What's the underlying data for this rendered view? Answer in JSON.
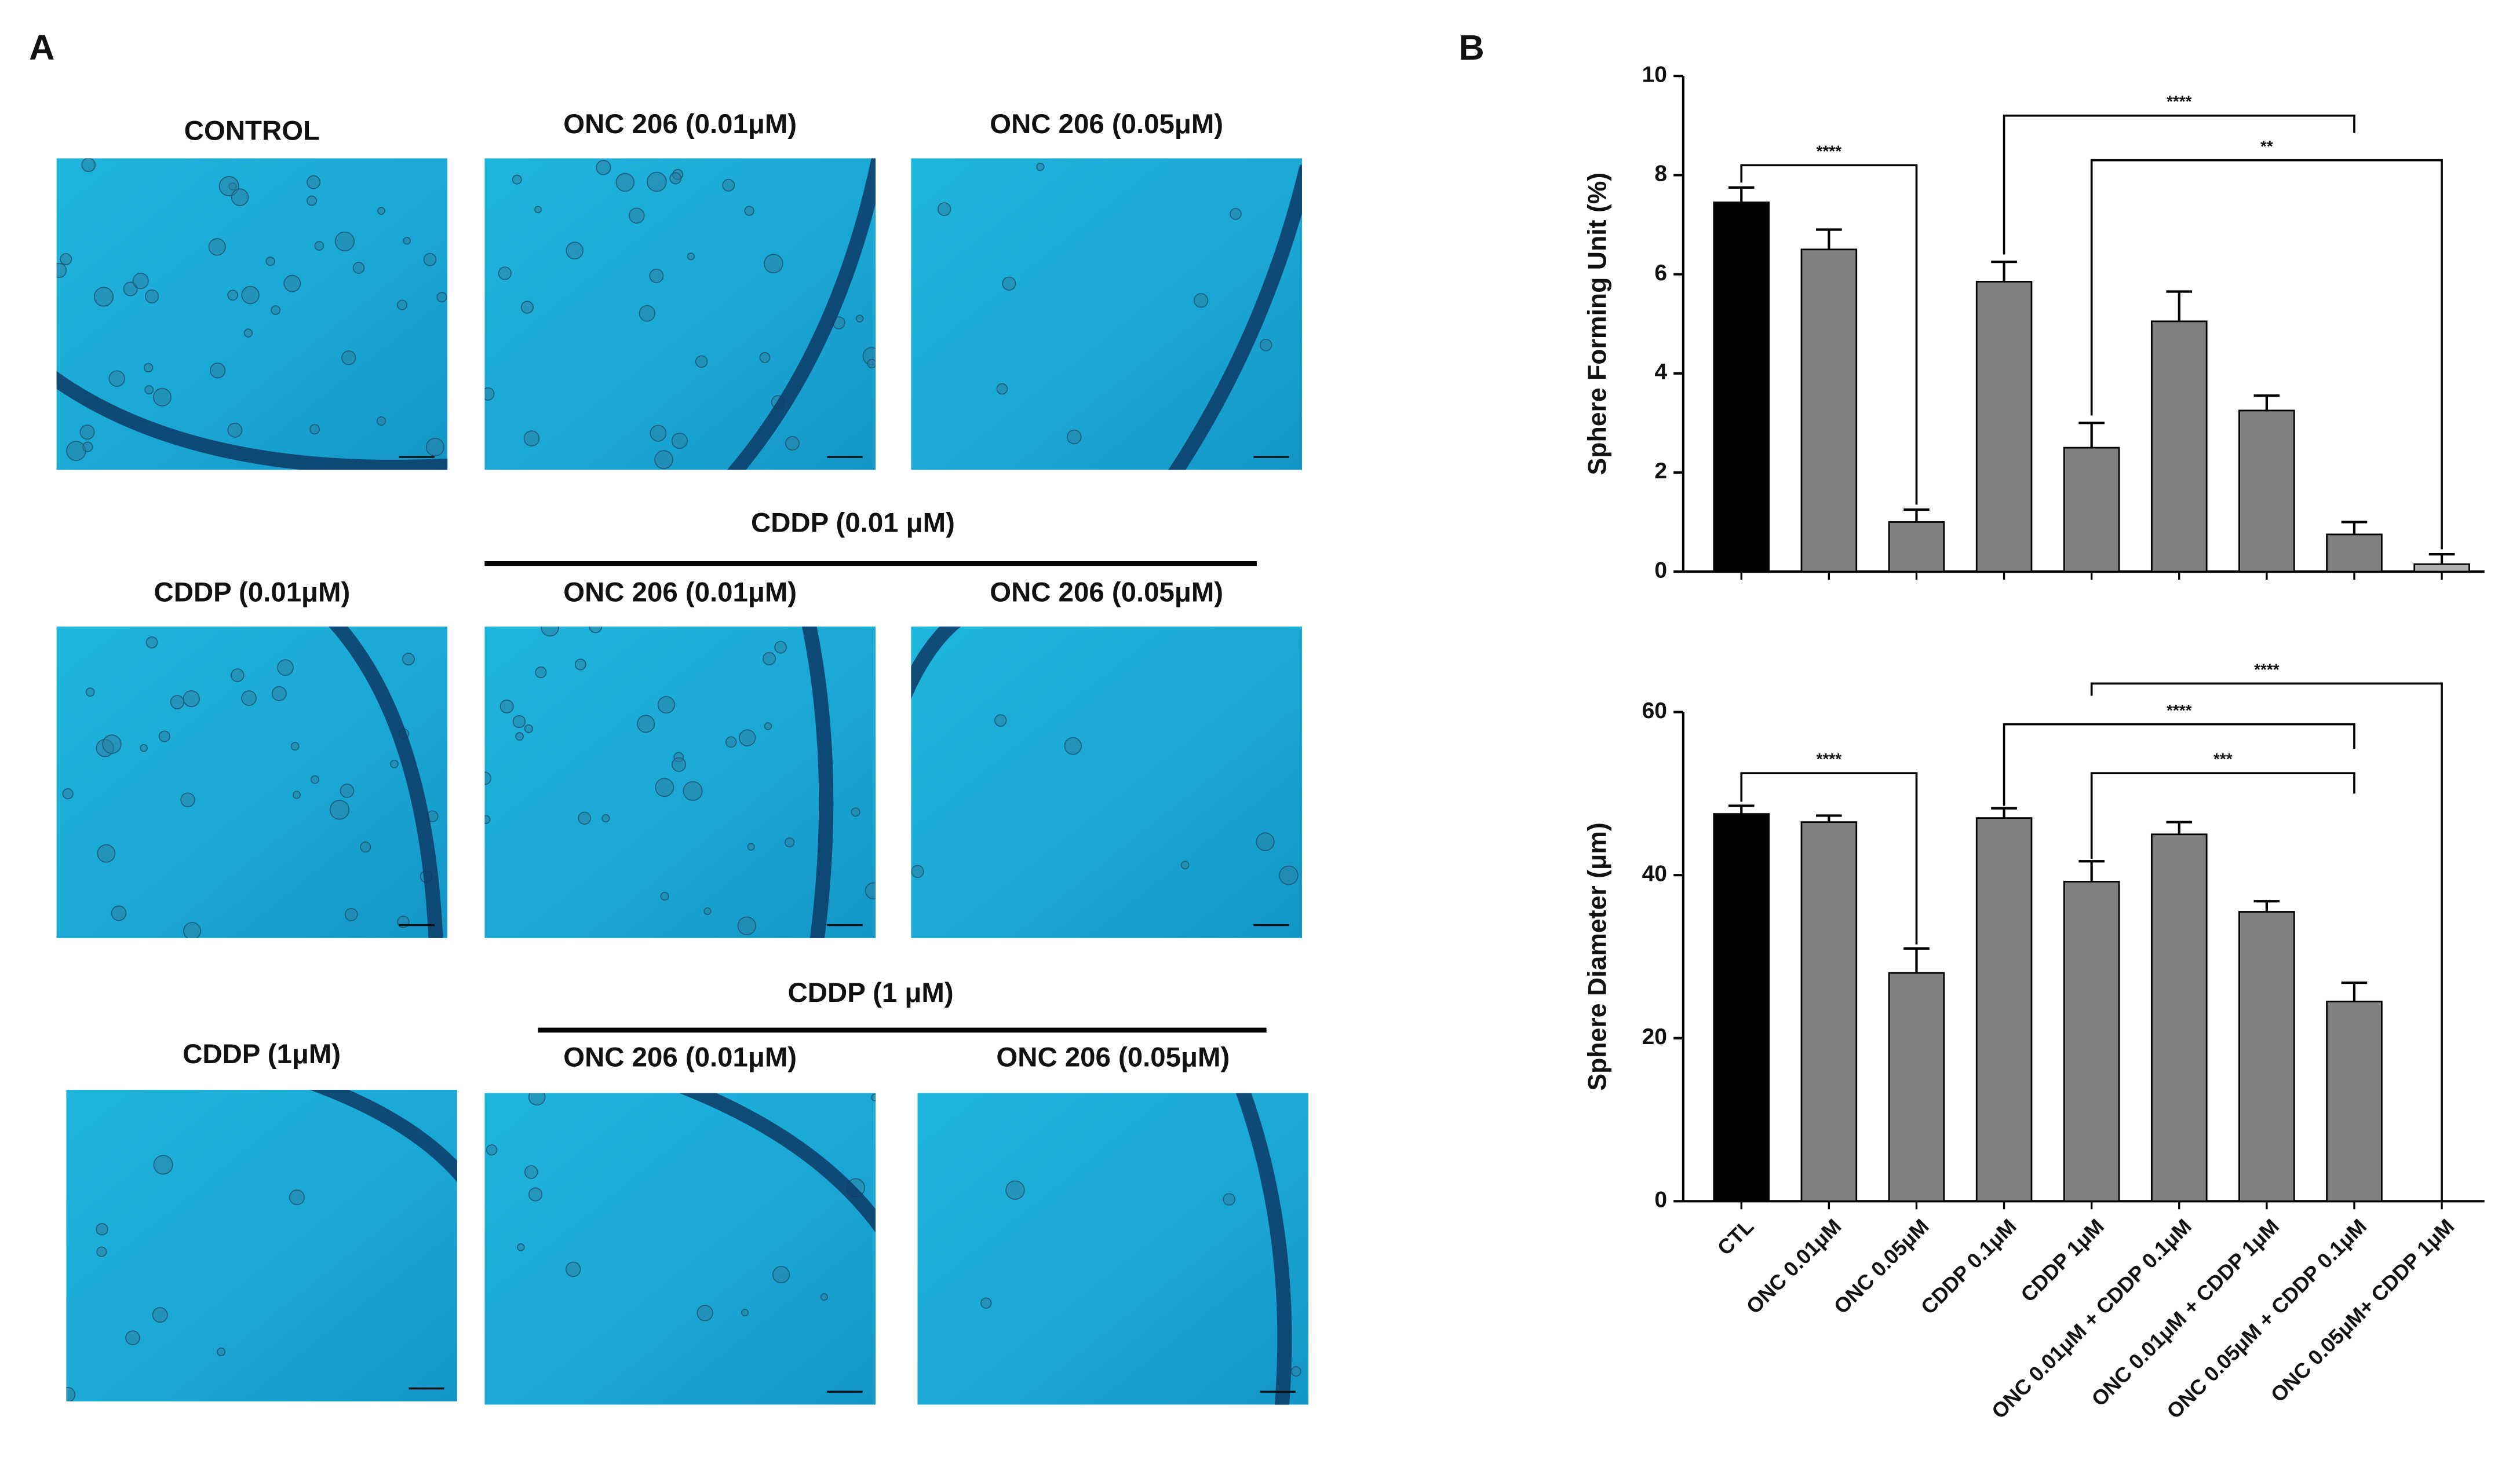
{
  "panels": {
    "a": "A",
    "b": "B"
  },
  "micrographs": [
    "CONTROL",
    "ONC 206 (0.01μM)",
    "ONC 206 (0.05μM)",
    "CDDP (0.01μM)",
    "ONC 206 (0.01μM)",
    "ONC 206 (0.05μM)",
    "CDDP (1μM)",
    "ONC 206 (0.01μM)",
    "ONC 206 (0.05μM)"
  ],
  "groups": [
    "CDDP (0.01 μM)",
    "CDDP (1 μM)"
  ],
  "chart_data": [
    {
      "type": "bar",
      "ylabel": "Sphere Forming Unit (%)",
      "categories": [
        null,
        null,
        null,
        null,
        null,
        null,
        null,
        null,
        null
      ],
      "values": [
        7.45,
        6.5,
        1.0,
        5.85,
        2.5,
        5.05,
        3.25,
        0.75,
        0.15
      ],
      "errors": [
        0.3,
        0.4,
        0.25,
        0.4,
        0.5,
        0.6,
        0.3,
        0.25,
        0.2
      ],
      "colors": [
        "#000000",
        "#808080",
        "#808080",
        "#808080",
        "#808080",
        "#808080",
        "#808080",
        "#808080",
        "#b0b0b0"
      ],
      "ylim": [
        0,
        10
      ],
      "yticks": [
        0,
        2,
        4,
        6,
        8,
        10
      ],
      "annotations": [
        "****",
        "****",
        "**"
      ]
    },
    {
      "type": "bar",
      "ylabel": "Sphere Diameter (μm)",
      "categories": [
        "CTL",
        "ONC 0.01μM",
        "ONC 0.05μM",
        "CDDP 0.1μM",
        "CDDP 1μM",
        "ONC 0.01μM + CDDP 0.1μM",
        "ONC 0.01μM + CDDP 1μM",
        "ONC 0.05μM + CDDP 0.1μM",
        "ONC 0.05μM+ CDDP 1μM"
      ],
      "values": [
        47.5,
        46.5,
        28,
        47,
        39.2,
        45,
        35.5,
        24.5,
        null
      ],
      "errors": [
        1,
        0.8,
        3,
        1.2,
        2.5,
        1.5,
        1.3,
        2.3,
        null
      ],
      "colors": [
        "#000000",
        "#808080",
        "#808080",
        "#808080",
        "#808080",
        "#808080",
        "#808080",
        "#808080",
        "#808080"
      ],
      "ylim": [
        0,
        60
      ],
      "yticks": [
        0,
        20,
        40,
        60
      ],
      "annotations": [
        "****",
        "****",
        "***",
        "****"
      ]
    }
  ]
}
